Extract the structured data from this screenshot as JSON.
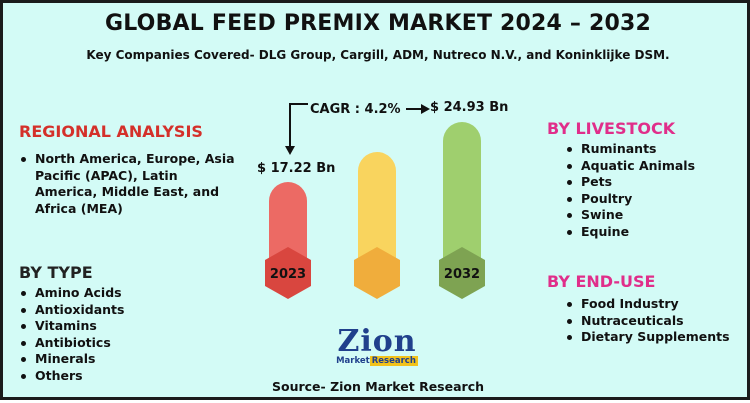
{
  "title": "GLOBAL FEED PREMIX MARKET 2024 – 2032",
  "subtitle": "Key Companies Covered- DLG Group, Cargill, ADM, Nutreco N.V., and Koninklijke DSM.",
  "colors": {
    "background": "#d3fbf6",
    "section_title": "#d4302a",
    "section_title_alt": "#e02e8a",
    "bar_2023": "#ec6a64",
    "bar_mid": "#f9d45e",
    "bar_2032": "#9fcf6e"
  },
  "regional": {
    "heading": "REGIONAL ANALYSIS",
    "items": [
      "North America, Europe, Asia Pacific (APAC), Latin America, Middle East, and Africa (MEA)"
    ]
  },
  "by_type": {
    "heading": "BY TYPE",
    "items": [
      "Amino Acids",
      "Antioxidants",
      "Vitamins",
      "Antibiotics",
      "Minerals",
      "Others"
    ]
  },
  "by_livestock": {
    "heading": "BY LIVESTOCK",
    "items": [
      "Ruminants",
      "Aquatic Animals",
      "Pets",
      "Poultry",
      "Swine",
      "Equine"
    ]
  },
  "by_end_use": {
    "heading": "BY END-USE",
    "items": [
      "Food Industry",
      "Nutraceuticals",
      "Dietary Supplements"
    ]
  },
  "growth": {
    "cagr_label": "CAGR : 4.2%",
    "start_value": "$ 17.22 Bn",
    "end_value": "$ 24.93 Bn",
    "start_year": "2023",
    "end_year": "2032"
  },
  "logo": {
    "main": "Zion",
    "market_word": "Market",
    "research_word": "Research"
  },
  "source": "Source- Zion Market Research"
}
